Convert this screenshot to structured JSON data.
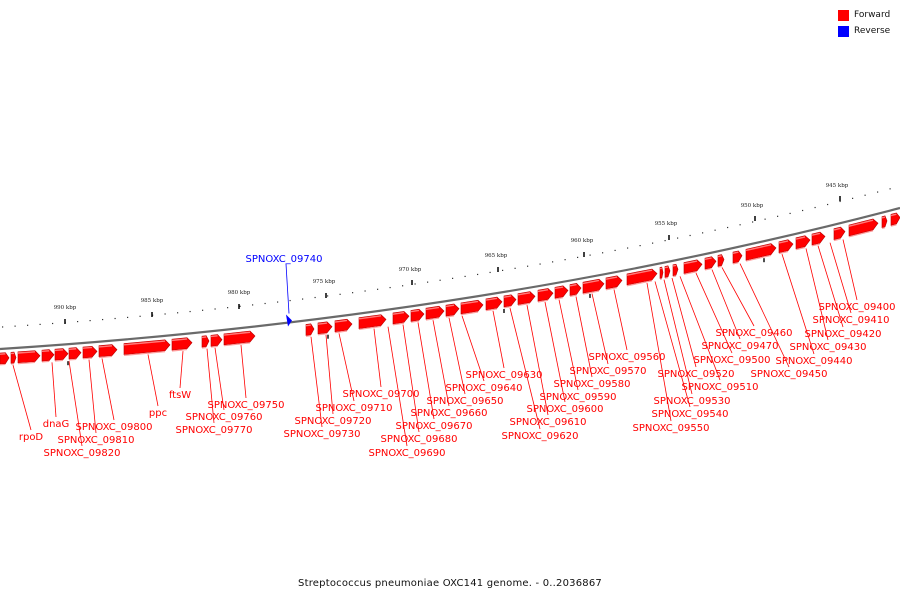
{
  "legend": {
    "forward_label": "Forward",
    "forward_color": "#ff0000",
    "reverse_label": "Reverse",
    "reverse_color": "#0000ff"
  },
  "caption": "Streptococcus pneumoniae OXC141 genome. - 0..2036867",
  "scale_labels": [
    "990 kbp",
    "985 kbp",
    "980 kbp",
    "975 kbp",
    "970 kbp",
    "965 kbp",
    "960 kbp",
    "955 kbp",
    "950 kbp",
    "945 kbp"
  ],
  "forward_genes": [
    {
      "label": "rpoD"
    },
    {
      "label": "dnaG"
    },
    {
      "label": "SPNOXC_09820"
    },
    {
      "label": "SPNOXC_09810"
    },
    {
      "label": "SPNOXC_09800"
    },
    {
      "label": "ppc"
    },
    {
      "label": "ftsW"
    },
    {
      "label": "SPNOXC_09770"
    },
    {
      "label": "SPNOXC_09760"
    },
    {
      "label": "SPNOXC_09750"
    },
    {
      "label": "SPNOXC_09730"
    },
    {
      "label": "SPNOXC_09720"
    },
    {
      "label": "SPNOXC_09710"
    },
    {
      "label": "SPNOXC_09700"
    },
    {
      "label": "SPNOXC_09690"
    },
    {
      "label": "SPNOXC_09680"
    },
    {
      "label": "SPNOXC_09670"
    },
    {
      "label": "SPNOXC_09660"
    },
    {
      "label": "SPNOXC_09650"
    },
    {
      "label": "SPNOXC_09640"
    },
    {
      "label": "SPNOXC_09630"
    },
    {
      "label": "SPNOXC_09620"
    },
    {
      "label": "SPNOXC_09610"
    },
    {
      "label": "SPNOXC_09600"
    },
    {
      "label": "SPNOXC_09590"
    },
    {
      "label": "SPNOXC_09580"
    },
    {
      "label": "SPNOXC_09570"
    },
    {
      "label": "SPNOXC_09560"
    },
    {
      "label": "SPNOXC_09550"
    },
    {
      "label": "SPNOXC_09540"
    },
    {
      "label": "SPNOXC_09530"
    },
    {
      "label": "SPNOXC_09520"
    },
    {
      "label": "SPNOXC_09510"
    },
    {
      "label": "SPNOXC_09500"
    },
    {
      "label": "SPNOXC_09470"
    },
    {
      "label": "SPNOXC_09460"
    },
    {
      "label": "SPNOXC_09450"
    },
    {
      "label": "SPNOXC_09440"
    },
    {
      "label": "SPNOXC_09430"
    },
    {
      "label": "SPNOXC_09420"
    },
    {
      "label": "SPNOXC_09410"
    },
    {
      "label": "SPNOXC_09400"
    }
  ],
  "reverse_genes": [
    {
      "label": "SPNOXC_09740"
    }
  ]
}
